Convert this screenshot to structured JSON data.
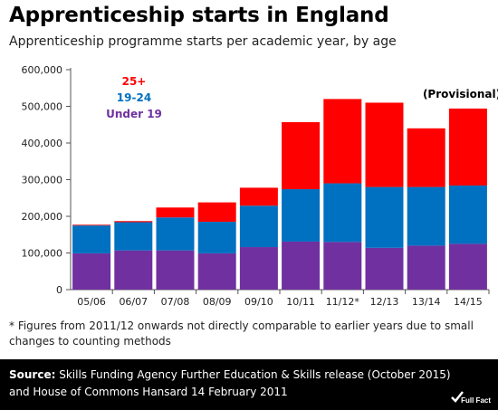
{
  "header": {
    "title": "Apprenticeship starts in England",
    "subtitle": "Apprenticeship programme starts per academic year, by age"
  },
  "chart_data": {
    "type": "bar",
    "stacked": true,
    "categories": [
      "05/06",
      "06/07",
      "07/08",
      "08/09",
      "09/10",
      "10/11",
      "11/12*",
      "12/13",
      "13/14",
      "14/15"
    ],
    "series": [
      {
        "name": "Under 19",
        "color": "#7030a0",
        "values": [
          99000,
          107000,
          107000,
          99000,
          116000,
          131000,
          130000,
          114000,
          120000,
          125000
        ]
      },
      {
        "name": "19-24",
        "color": "#0070c0",
        "values": [
          76000,
          77000,
          90000,
          86000,
          113000,
          143000,
          160000,
          166000,
          160000,
          159000
        ]
      },
      {
        "name": "25+",
        "color": "#ff0000",
        "values": [
          2000,
          3000,
          27000,
          53000,
          49000,
          183000,
          230000,
          230000,
          160000,
          210000
        ]
      }
    ],
    "ylim": [
      0,
      600000
    ],
    "yticks": [
      0,
      100000,
      200000,
      300000,
      400000,
      500000,
      600000
    ],
    "ytick_labels": [
      "0",
      "100,000",
      "200,000",
      "300,000",
      "400,000",
      "500,000",
      "600,000"
    ],
    "annotation": "(Provisional)",
    "legend_placement": "top-left",
    "grid": false
  },
  "footnote": "* Figures from 2011/12 onwards not directly comparable to earlier years due to small changes to counting methods",
  "footer": {
    "source_label": "Source:",
    "source_text": "Skills Funding Agency Further Education & Skills release (October 2015) and House of Commons Hansard 14 February 2011",
    "logo_text": "Full Fact"
  }
}
